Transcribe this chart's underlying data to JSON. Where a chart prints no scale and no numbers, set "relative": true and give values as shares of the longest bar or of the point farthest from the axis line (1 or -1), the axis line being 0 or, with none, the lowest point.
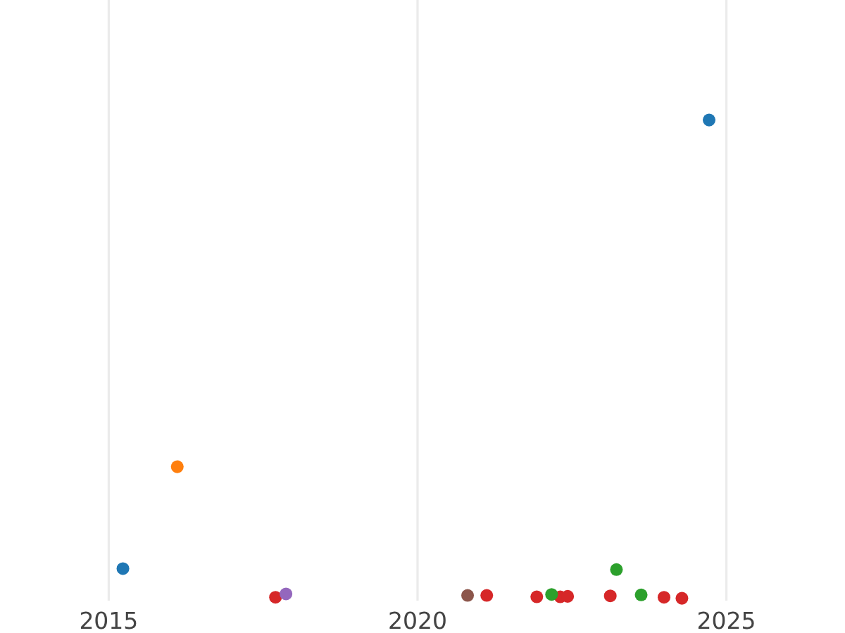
{
  "chart_data": {
    "type": "scatter",
    "relative": true,
    "grid": "x",
    "marker": "circle",
    "xlim": [
      2013.24,
      2026.92
    ],
    "xticks": [
      2015,
      2020,
      2025
    ],
    "series": [
      {
        "color": "#1f77b4",
        "x": [
          2015.23,
          2024.72
        ],
        "values": [
          0.062,
          1
        ]
      },
      {
        "color": "#ff7f0e",
        "x": [
          2016.11
        ],
        "values": [
          0.275
        ]
      },
      {
        "color": "#d62728",
        "x": [
          2017.7,
          2021.12,
          2021.93,
          2022.31,
          2022.43,
          2023.12,
          2023.99,
          2024.28
        ],
        "values": [
          0.002,
          0.006,
          0.003,
          0.003,
          0.004,
          0.005,
          0.002,
          0
        ]
      },
      {
        "color": "#9467bd",
        "x": [
          2017.87
        ],
        "values": [
          0.009
        ]
      },
      {
        "color": "#8c564b",
        "x": [
          2020.81
        ],
        "values": [
          0.006
        ]
      },
      {
        "color": "#2ca02c",
        "x": [
          2022.17,
          2023.22,
          2023.62
        ],
        "values": [
          0.008,
          0.06,
          0.007
        ]
      }
    ]
  }
}
